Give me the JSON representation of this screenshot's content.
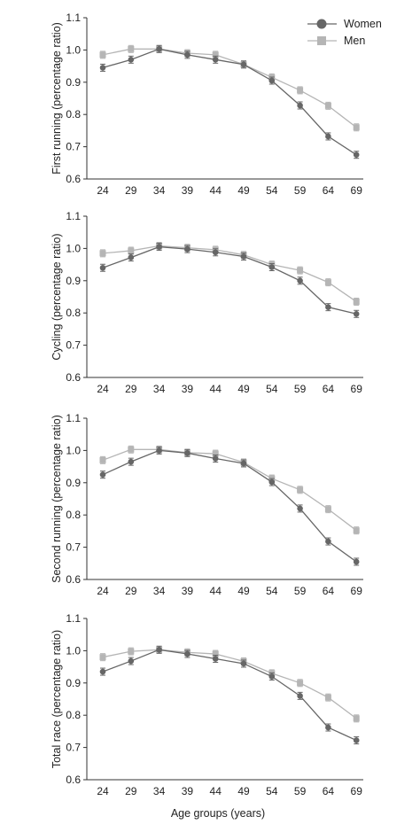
{
  "legend": {
    "women_label": "Women",
    "men_label": "Men"
  },
  "colors": {
    "women": "#666666",
    "men": "#b5b5b5",
    "axis": "#333333"
  },
  "x_axis_title": "Age groups (years)",
  "chart_data": [
    {
      "type": "line",
      "ylabel": "First running (percentage ratio)",
      "categories": [
        "24",
        "29",
        "34",
        "39",
        "44",
        "49",
        "54",
        "59",
        "64",
        "69"
      ],
      "ylim": [
        0.6,
        1.1
      ],
      "yticks": [
        "0.6",
        "0.7",
        "0.8",
        "0.9",
        "1.0",
        "1.1"
      ],
      "series": [
        {
          "name": "Women",
          "values": [
            0.945,
            0.97,
            1.003,
            0.985,
            0.97,
            0.955,
            0.905,
            0.828,
            0.732,
            0.675
          ]
        },
        {
          "name": "Men",
          "values": [
            0.985,
            1.003,
            1.003,
            0.99,
            0.985,
            0.955,
            0.915,
            0.875,
            0.827,
            0.76
          ]
        }
      ]
    },
    {
      "type": "line",
      "ylabel": "Cycling (percentage ratio)",
      "categories": [
        "24",
        "29",
        "34",
        "39",
        "44",
        "49",
        "54",
        "59",
        "64",
        "69"
      ],
      "ylim": [
        0.6,
        1.1
      ],
      "yticks": [
        "0.6",
        "0.7",
        "0.8",
        "0.9",
        "1.0",
        "1.1"
      ],
      "series": [
        {
          "name": "Women",
          "values": [
            0.94,
            0.972,
            1.005,
            0.998,
            0.988,
            0.975,
            0.942,
            0.9,
            0.818,
            0.797
          ]
        },
        {
          "name": "Men",
          "values": [
            0.985,
            0.993,
            1.008,
            1.002,
            0.996,
            0.98,
            0.95,
            0.932,
            0.895,
            0.835
          ]
        }
      ]
    },
    {
      "type": "line",
      "ylabel": "Second running (percentage ratio)",
      "categories": [
        "24",
        "29",
        "34",
        "39",
        "44",
        "49",
        "54",
        "59",
        "64",
        "69"
      ],
      "ylim": [
        0.6,
        1.1
      ],
      "yticks": [
        "0.6",
        "0.7",
        "0.8",
        "0.9",
        "1.0",
        "1.1"
      ],
      "series": [
        {
          "name": "Women",
          "values": [
            0.925,
            0.965,
            1.0,
            0.992,
            0.975,
            0.96,
            0.902,
            0.82,
            0.718,
            0.655
          ]
        },
        {
          "name": "Men",
          "values": [
            0.97,
            1.003,
            1.003,
            0.993,
            0.99,
            0.963,
            0.913,
            0.878,
            0.818,
            0.752
          ]
        }
      ]
    },
    {
      "type": "line",
      "ylabel": "Total race (percentage ratio)",
      "categories": [
        "24",
        "29",
        "34",
        "39",
        "44",
        "49",
        "54",
        "59",
        "64",
        "69"
      ],
      "ylim": [
        0.6,
        1.1
      ],
      "yticks": [
        "0.6",
        "0.7",
        "0.8",
        "0.9",
        "1.0",
        "1.1"
      ],
      "series": [
        {
          "name": "Women",
          "values": [
            0.935,
            0.968,
            1.003,
            0.99,
            0.975,
            0.96,
            0.92,
            0.86,
            0.762,
            0.722
          ]
        },
        {
          "name": "Men",
          "values": [
            0.98,
            0.998,
            1.003,
            0.995,
            0.99,
            0.967,
            0.93,
            0.9,
            0.855,
            0.79
          ]
        }
      ]
    }
  ]
}
